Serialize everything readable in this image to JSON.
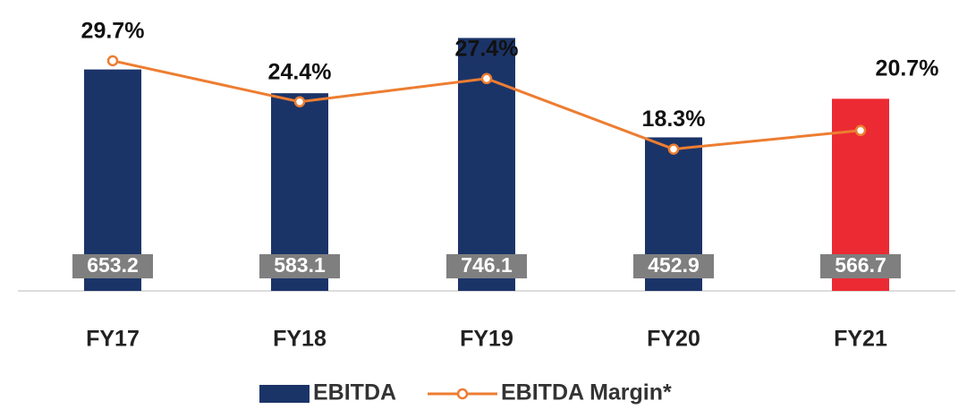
{
  "chart_data": {
    "type": "bar_line",
    "categories": [
      "FY17",
      "FY18",
      "FY19",
      "FY20",
      "FY21"
    ],
    "series": [
      {
        "name": "EBITDA",
        "type": "bar",
        "color": "#1b3468",
        "colors": [
          "#1b3468",
          "#1b3468",
          "#1b3468",
          "#1b3468",
          "#ec2a33"
        ],
        "values": [
          653.2,
          583.1,
          746.1,
          452.9,
          566.7
        ]
      },
      {
        "name": "EBITDA Margin*",
        "type": "line",
        "axis": "y2",
        "color": "#ed7d31",
        "values": [
          29.7,
          24.4,
          27.4,
          18.3,
          20.7
        ],
        "value_labels": [
          "29.7%",
          "24.4%",
          "27.4%",
          "18.3%",
          "20.7%"
        ]
      }
    ],
    "ylim": [
      0,
      800
    ],
    "y2lim": [
      0,
      35
    ],
    "legend": "bottom"
  }
}
